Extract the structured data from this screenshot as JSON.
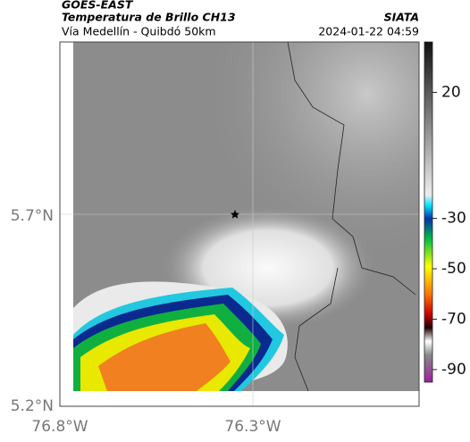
{
  "header": {
    "title": "GOES-EAST",
    "subtitle": "Temperatura de Brillo CH13",
    "caption": "Vía Medellín - Quibdó 50km",
    "source": "SIATA",
    "timestamp": "2024-01-22 04:59"
  },
  "map": {
    "xticks": [
      "76.8°W",
      "76.3°W"
    ],
    "yticks": [
      "5.7°N",
      "5.2°N"
    ]
  },
  "colorbar": {
    "lim": [
      -95,
      40
    ],
    "ticks": [
      20,
      -30,
      -50,
      -70,
      -90
    ]
  }
}
